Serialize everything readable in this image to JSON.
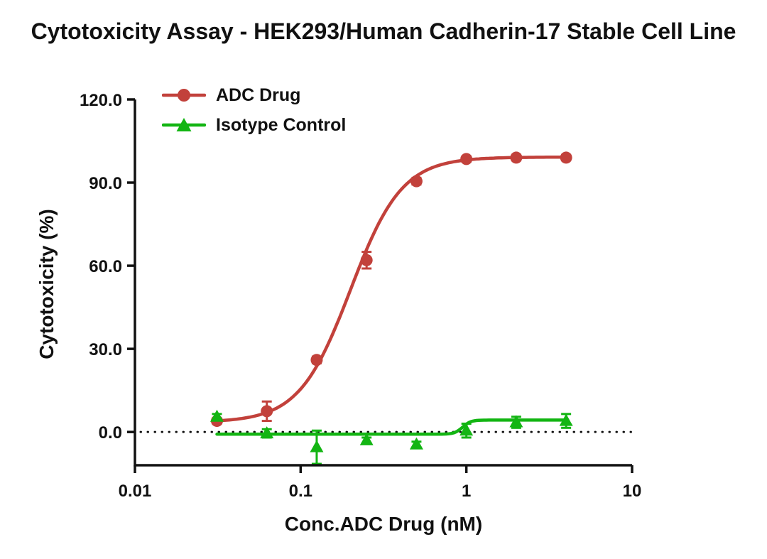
{
  "title": "Cytotoxicity Assay - HEK293/Human Cadherin-17 Stable Cell Line",
  "chart_data": {
    "type": "line",
    "title": "Cytotoxicity Assay - HEK293/Human Cadherin-17 Stable Cell Line",
    "xlabel": "Conc.ADC Drug (nM)",
    "ylabel": "Cytotoxicity (%)",
    "x_scale": "log10",
    "xlim": [
      0.01,
      10
    ],
    "ylim": [
      -12,
      120
    ],
    "x_ticks": [
      0.01,
      0.1,
      1,
      10
    ],
    "x_tick_labels": [
      "0.01",
      "0.1",
      "1",
      "10"
    ],
    "y_ticks": [
      0,
      30,
      60,
      90,
      120
    ],
    "y_tick_labels": [
      "0.0",
      "30.0",
      "60.0",
      "90.0",
      "120.0"
    ],
    "baseline_y": 0,
    "baseline_style": "dotted",
    "grid": false,
    "legend_position": "top-left-inside",
    "axis_color": "#111111",
    "series": [
      {
        "name": "ADC Drug",
        "color": "#C2413B",
        "marker": "circle",
        "x": [
          0.03125,
          0.0625,
          0.125,
          0.25,
          0.5,
          1,
          2,
          4
        ],
        "y": [
          4.0,
          7.5,
          26.0,
          62.0,
          90.5,
          98.5,
          99.0,
          99.0
        ],
        "err": [
          1.0,
          3.5,
          1.2,
          3.0,
          1.2,
          1.0,
          1.0,
          1.0
        ],
        "fit": {
          "model": "4PL",
          "bottom": 3.5,
          "top": 99.2,
          "ec50": 0.2,
          "hill": 2.8
        }
      },
      {
        "name": "Isotype Control",
        "color": "#13B513",
        "marker": "triangle",
        "x": [
          0.03125,
          0.0625,
          0.125,
          0.25,
          0.5,
          1,
          2,
          4
        ],
        "y": [
          5.5,
          -0.5,
          -5.5,
          -3.0,
          -4.5,
          0.5,
          3.5,
          4.0
        ],
        "err": [
          1.0,
          1.5,
          6.0,
          1.0,
          1.0,
          2.5,
          2.0,
          2.5
        ],
        "fit": {
          "model": "4PL",
          "bottom": -0.8,
          "top": 4.3,
          "ec50": 0.95,
          "hill": 18
        }
      }
    ]
  }
}
